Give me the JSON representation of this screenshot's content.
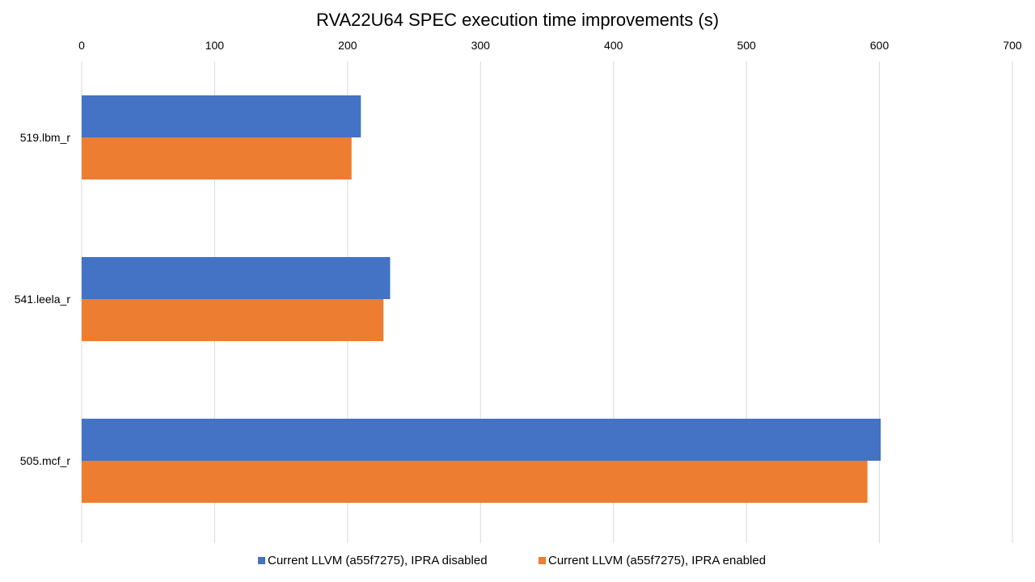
{
  "chart_data": {
    "type": "bar",
    "orientation": "horizontal",
    "title": "RVA22U64 SPEC execution time improvements (s)",
    "xlabel": "",
    "ylabel": "",
    "categories": [
      "519.lbm_r",
      "541.leela_r",
      "505.mcf_r"
    ],
    "series": [
      {
        "name": "Current LLVM (a55f7275), IPRA disabled",
        "color": "#4472C4",
        "values": [
          210,
          232,
          601
        ]
      },
      {
        "name": "Current LLVM (a55f7275), IPRA enabled",
        "color": "#ED7D31",
        "values": [
          203,
          227,
          591
        ]
      }
    ],
    "xlim": [
      0,
      700
    ],
    "xticks": [
      "0",
      "100",
      "200",
      "300",
      "400",
      "500",
      "600",
      "700"
    ],
    "x_axis_position": "top",
    "grid": true,
    "legend_position": "bottom"
  }
}
